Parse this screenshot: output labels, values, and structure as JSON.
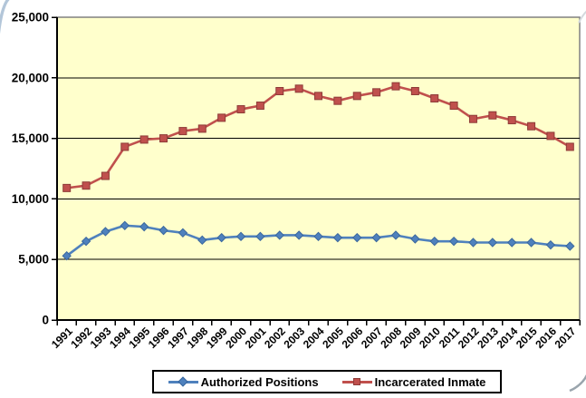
{
  "chart_data": {
    "type": "line",
    "title": "",
    "categories": [
      "1991",
      "1992",
      "1993",
      "1994",
      "1995",
      "1996",
      "1997",
      "1998",
      "1999",
      "2000",
      "2001",
      "2002",
      "2003",
      "2004",
      "2005",
      "2006",
      "2007",
      "2008",
      "2009",
      "2010",
      "2011",
      "2012",
      "2013",
      "2014",
      "2015",
      "2016",
      "2017"
    ],
    "series": [
      {
        "name": "Authorized Positions",
        "marker": "diamond",
        "color": "#4F81BD",
        "edge_color": "#3A679D",
        "values": [
          5300,
          6500,
          7300,
          7800,
          7700,
          7400,
          7200,
          6600,
          6800,
          6900,
          6900,
          7000,
          7000,
          6900,
          6800,
          6800,
          6800,
          7000,
          6700,
          6500,
          6500,
          6400,
          6400,
          6400,
          6400,
          6200,
          6100
        ]
      },
      {
        "name": "Incarcerated Inmate",
        "marker": "square",
        "color": "#C0504D",
        "edge_color": "#8E3B38",
        "values": [
          10900,
          11100,
          11900,
          14300,
          14900,
          15000,
          15600,
          15800,
          16700,
          17400,
          17700,
          18900,
          19100,
          18500,
          18100,
          18500,
          18800,
          19300,
          18900,
          18300,
          17700,
          16600,
          16900,
          16500,
          16000,
          15200,
          14300
        ]
      }
    ],
    "xlabel": "",
    "ylabel": "",
    "y_axis": {
      "min": 0,
      "max": 25000,
      "step": 5000,
      "tick_labels": [
        "0",
        "5,000",
        "10,000",
        "15,000",
        "20,000",
        "25,000"
      ]
    },
    "x_tick_rotation_deg": 45,
    "grid": true,
    "legend_position": "bottom",
    "plot_bg_color": "#FFFFCC",
    "plot_border_color": "#808080",
    "axis_color": "#000000",
    "gridline_color": "#000000"
  }
}
